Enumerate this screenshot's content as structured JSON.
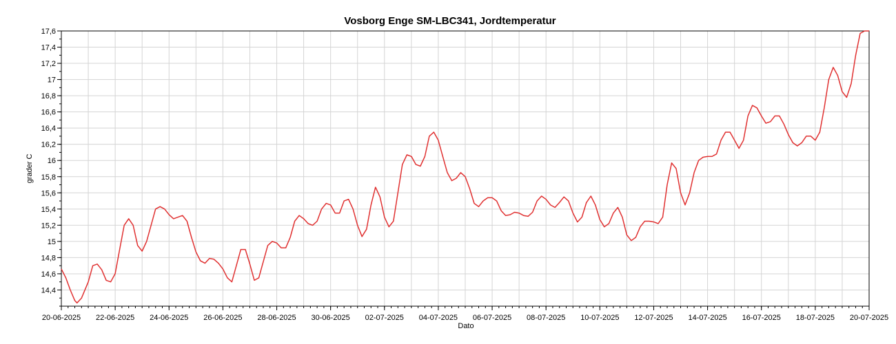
{
  "chart_data": {
    "type": "line",
    "title": "Vosborg Enge SM-LBC341, Jordtemperatur",
    "xlabel": "Dato",
    "ylabel": "grader C",
    "xlim": [
      "2025-06-20",
      "2025-07-20"
    ],
    "ylim": [
      14.2,
      17.6
    ],
    "grid": true,
    "x_ticks": [
      "20-06-2025",
      "22-06-2025",
      "24-06-2025",
      "26-06-2025",
      "28-06-2025",
      "30-06-2025",
      "02-07-2025",
      "04-07-2025",
      "06-07-2025",
      "08-07-2025",
      "10-07-2025",
      "12-07-2025",
      "14-07-2025",
      "16-07-2025",
      "18-07-2025",
      "20-07-2025"
    ],
    "y_ticks": [
      "14,4",
      "14,6",
      "14,8",
      "15",
      "15,2",
      "15,4",
      "15,6",
      "15,8",
      "16",
      "16,2",
      "16,4",
      "16,6",
      "16,8",
      "17",
      "17,2",
      "17,4",
      "17,6"
    ],
    "series": [
      {
        "color": "#e03030",
        "points": [
          [
            "2025-06-20 00:00",
            14.66
          ],
          [
            "2025-06-20 04:00",
            14.55
          ],
          [
            "2025-06-20 08:00",
            14.4
          ],
          [
            "2025-06-20 12:00",
            14.27
          ],
          [
            "2025-06-20 14:00",
            14.24
          ],
          [
            "2025-06-20 18:00",
            14.3
          ],
          [
            "2025-06-21 00:00",
            14.5
          ],
          [
            "2025-06-21 04:00",
            14.7
          ],
          [
            "2025-06-21 08:00",
            14.72
          ],
          [
            "2025-06-21 12:00",
            14.65
          ],
          [
            "2025-06-21 16:00",
            14.52
          ],
          [
            "2025-06-21 20:00",
            14.5
          ],
          [
            "2025-06-22 00:00",
            14.6
          ],
          [
            "2025-06-22 04:00",
            14.9
          ],
          [
            "2025-06-22 08:00",
            15.2
          ],
          [
            "2025-06-22 12:00",
            15.28
          ],
          [
            "2025-06-22 16:00",
            15.2
          ],
          [
            "2025-06-22 20:00",
            14.95
          ],
          [
            "2025-06-23 00:00",
            14.88
          ],
          [
            "2025-06-23 04:00",
            15.0
          ],
          [
            "2025-06-23 08:00",
            15.2
          ],
          [
            "2025-06-23 12:00",
            15.4
          ],
          [
            "2025-06-23 16:00",
            15.43
          ],
          [
            "2025-06-23 20:00",
            15.4
          ],
          [
            "2025-06-24 00:00",
            15.33
          ],
          [
            "2025-06-24 04:00",
            15.28
          ],
          [
            "2025-06-24 08:00",
            15.3
          ],
          [
            "2025-06-24 12:00",
            15.32
          ],
          [
            "2025-06-24 16:00",
            15.25
          ],
          [
            "2025-06-24 20:00",
            15.05
          ],
          [
            "2025-06-25 00:00",
            14.87
          ],
          [
            "2025-06-25 04:00",
            14.76
          ],
          [
            "2025-06-25 08:00",
            14.73
          ],
          [
            "2025-06-25 12:00",
            14.79
          ],
          [
            "2025-06-25 16:00",
            14.78
          ],
          [
            "2025-06-25 20:00",
            14.73
          ],
          [
            "2025-06-26 00:00",
            14.66
          ],
          [
            "2025-06-26 04:00",
            14.55
          ],
          [
            "2025-06-26 08:00",
            14.5
          ],
          [
            "2025-06-26 12:00",
            14.7
          ],
          [
            "2025-06-26 16:00",
            14.9
          ],
          [
            "2025-06-26 20:00",
            14.9
          ],
          [
            "2025-06-27 00:00",
            14.72
          ],
          [
            "2025-06-27 04:00",
            14.52
          ],
          [
            "2025-06-27 08:00",
            14.55
          ],
          [
            "2025-06-27 12:00",
            14.75
          ],
          [
            "2025-06-27 16:00",
            14.95
          ],
          [
            "2025-06-27 20:00",
            15.0
          ],
          [
            "2025-06-28 00:00",
            14.98
          ],
          [
            "2025-06-28 04:00",
            14.92
          ],
          [
            "2025-06-28 08:00",
            14.92
          ],
          [
            "2025-06-28 12:00",
            15.05
          ],
          [
            "2025-06-28 16:00",
            15.25
          ],
          [
            "2025-06-28 20:00",
            15.32
          ],
          [
            "2025-06-29 00:00",
            15.28
          ],
          [
            "2025-06-29 04:00",
            15.22
          ],
          [
            "2025-06-29 08:00",
            15.2
          ],
          [
            "2025-06-29 12:00",
            15.25
          ],
          [
            "2025-06-29 16:00",
            15.4
          ],
          [
            "2025-06-29 20:00",
            15.47
          ],
          [
            "2025-06-30 00:00",
            15.45
          ],
          [
            "2025-06-30 04:00",
            15.35
          ],
          [
            "2025-06-30 08:00",
            15.35
          ],
          [
            "2025-06-30 12:00",
            15.5
          ],
          [
            "2025-06-30 16:00",
            15.52
          ],
          [
            "2025-06-30 20:00",
            15.4
          ],
          [
            "2025-07-01 00:00",
            15.2
          ],
          [
            "2025-07-01 04:00",
            15.06
          ],
          [
            "2025-07-01 08:00",
            15.15
          ],
          [
            "2025-07-01 12:00",
            15.45
          ],
          [
            "2025-07-01 16:00",
            15.67
          ],
          [
            "2025-07-01 20:00",
            15.55
          ],
          [
            "2025-07-02 00:00",
            15.3
          ],
          [
            "2025-07-02 04:00",
            15.18
          ],
          [
            "2025-07-02 08:00",
            15.25
          ],
          [
            "2025-07-02 12:00",
            15.6
          ],
          [
            "2025-07-02 16:00",
            15.95
          ],
          [
            "2025-07-02 20:00",
            16.07
          ],
          [
            "2025-07-03 00:00",
            16.05
          ],
          [
            "2025-07-03 04:00",
            15.95
          ],
          [
            "2025-07-03 08:00",
            15.93
          ],
          [
            "2025-07-03 12:00",
            16.05
          ],
          [
            "2025-07-03 16:00",
            16.3
          ],
          [
            "2025-07-03 20:00",
            16.35
          ],
          [
            "2025-07-04 00:00",
            16.25
          ],
          [
            "2025-07-04 04:00",
            16.05
          ],
          [
            "2025-07-04 08:00",
            15.85
          ],
          [
            "2025-07-04 12:00",
            15.75
          ],
          [
            "2025-07-04 16:00",
            15.78
          ],
          [
            "2025-07-04 20:00",
            15.85
          ],
          [
            "2025-07-05 00:00",
            15.8
          ],
          [
            "2025-07-05 04:00",
            15.65
          ],
          [
            "2025-07-05 08:00",
            15.47
          ],
          [
            "2025-07-05 12:00",
            15.43
          ],
          [
            "2025-07-05 16:00",
            15.5
          ],
          [
            "2025-07-05 20:00",
            15.54
          ],
          [
            "2025-07-06 00:00",
            15.54
          ],
          [
            "2025-07-06 04:00",
            15.5
          ],
          [
            "2025-07-06 08:00",
            15.38
          ],
          [
            "2025-07-06 12:00",
            15.32
          ],
          [
            "2025-07-06 16:00",
            15.33
          ],
          [
            "2025-07-06 20:00",
            15.36
          ],
          [
            "2025-07-07 00:00",
            15.35
          ],
          [
            "2025-07-07 04:00",
            15.32
          ],
          [
            "2025-07-07 08:00",
            15.31
          ],
          [
            "2025-07-07 12:00",
            15.36
          ],
          [
            "2025-07-07 16:00",
            15.5
          ],
          [
            "2025-07-07 20:00",
            15.56
          ],
          [
            "2025-07-08 00:00",
            15.52
          ],
          [
            "2025-07-08 04:00",
            15.45
          ],
          [
            "2025-07-08 08:00",
            15.42
          ],
          [
            "2025-07-08 12:00",
            15.48
          ],
          [
            "2025-07-08 16:00",
            15.55
          ],
          [
            "2025-07-08 20:00",
            15.5
          ],
          [
            "2025-07-09 00:00",
            15.35
          ],
          [
            "2025-07-09 04:00",
            15.24
          ],
          [
            "2025-07-09 08:00",
            15.3
          ],
          [
            "2025-07-09 12:00",
            15.48
          ],
          [
            "2025-07-09 16:00",
            15.56
          ],
          [
            "2025-07-09 20:00",
            15.45
          ],
          [
            "2025-07-10 00:00",
            15.27
          ],
          [
            "2025-07-10 04:00",
            15.18
          ],
          [
            "2025-07-10 08:00",
            15.22
          ],
          [
            "2025-07-10 12:00",
            15.35
          ],
          [
            "2025-07-10 16:00",
            15.42
          ],
          [
            "2025-07-10 20:00",
            15.3
          ],
          [
            "2025-07-11 00:00",
            15.08
          ],
          [
            "2025-07-11 04:00",
            15.01
          ],
          [
            "2025-07-11 08:00",
            15.05
          ],
          [
            "2025-07-11 12:00",
            15.18
          ],
          [
            "2025-07-11 16:00",
            15.25
          ],
          [
            "2025-07-11 20:00",
            15.25
          ],
          [
            "2025-07-12 00:00",
            15.24
          ],
          [
            "2025-07-12 04:00",
            15.22
          ],
          [
            "2025-07-12 08:00",
            15.3
          ],
          [
            "2025-07-12 12:00",
            15.7
          ],
          [
            "2025-07-12 16:00",
            15.97
          ],
          [
            "2025-07-12 20:00",
            15.9
          ],
          [
            "2025-07-13 00:00",
            15.6
          ],
          [
            "2025-07-13 04:00",
            15.45
          ],
          [
            "2025-07-13 08:00",
            15.6
          ],
          [
            "2025-07-13 12:00",
            15.85
          ],
          [
            "2025-07-13 16:00",
            16.0
          ],
          [
            "2025-07-13 20:00",
            16.04
          ],
          [
            "2025-07-14 00:00",
            16.05
          ],
          [
            "2025-07-14 04:00",
            16.05
          ],
          [
            "2025-07-14 08:00",
            16.08
          ],
          [
            "2025-07-14 12:00",
            16.25
          ],
          [
            "2025-07-14 16:00",
            16.35
          ],
          [
            "2025-07-14 20:00",
            16.35
          ],
          [
            "2025-07-15 00:00",
            16.25
          ],
          [
            "2025-07-15 04:00",
            16.15
          ],
          [
            "2025-07-15 08:00",
            16.25
          ],
          [
            "2025-07-15 12:00",
            16.55
          ],
          [
            "2025-07-15 16:00",
            16.68
          ],
          [
            "2025-07-15 20:00",
            16.65
          ],
          [
            "2025-07-16 00:00",
            16.55
          ],
          [
            "2025-07-16 04:00",
            16.46
          ],
          [
            "2025-07-16 08:00",
            16.48
          ],
          [
            "2025-07-16 12:00",
            16.55
          ],
          [
            "2025-07-16 16:00",
            16.55
          ],
          [
            "2025-07-16 20:00",
            16.45
          ],
          [
            "2025-07-17 00:00",
            16.32
          ],
          [
            "2025-07-17 04:00",
            16.22
          ],
          [
            "2025-07-17 08:00",
            16.18
          ],
          [
            "2025-07-17 12:00",
            16.22
          ],
          [
            "2025-07-17 16:00",
            16.3
          ],
          [
            "2025-07-17 20:00",
            16.3
          ],
          [
            "2025-07-18 00:00",
            16.25
          ],
          [
            "2025-07-18 04:00",
            16.35
          ],
          [
            "2025-07-18 08:00",
            16.65
          ],
          [
            "2025-07-18 12:00",
            17.0
          ],
          [
            "2025-07-18 16:00",
            17.15
          ],
          [
            "2025-07-18 20:00",
            17.05
          ],
          [
            "2025-07-19 00:00",
            16.85
          ],
          [
            "2025-07-19 04:00",
            16.78
          ],
          [
            "2025-07-19 08:00",
            16.95
          ],
          [
            "2025-07-19 12:00",
            17.3
          ],
          [
            "2025-07-19 16:00",
            17.57
          ],
          [
            "2025-07-19 20:00",
            17.6
          ],
          [
            "2025-07-20 00:00",
            17.6
          ]
        ]
      }
    ]
  }
}
